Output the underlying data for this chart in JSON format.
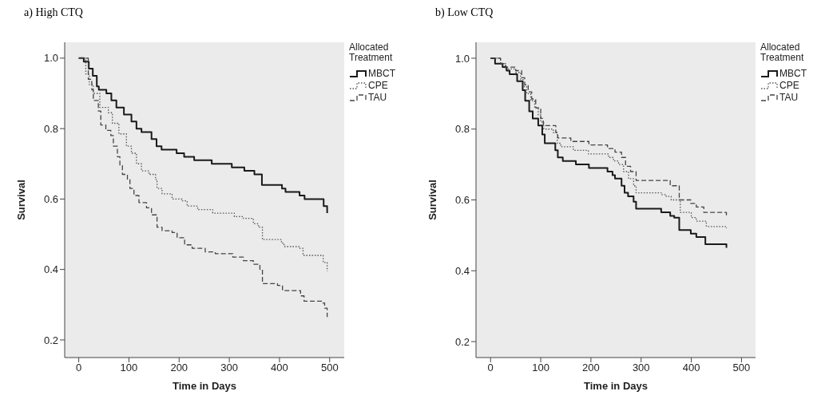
{
  "chart_data": [
    {
      "type": "step",
      "title": "a) High CTQ",
      "xlabel": "Time in Days",
      "ylabel": "Survival",
      "legend_title": "Allocated Treatment",
      "legend": "top right",
      "grid": false,
      "xlim": [
        -28,
        529
      ],
      "xticks": [
        0,
        100,
        200,
        300,
        400,
        500
      ],
      "ylim": [
        0.15,
        1.045
      ],
      "yticks": [
        0.2,
        0.4,
        0.6,
        0.8,
        {
          "value": 1,
          "label": "1.0"
        }
      ],
      "series": [
        {
          "name": "MBCT",
          "color": "#1a1a1a",
          "line_style": "solid",
          "x": [
            0,
            10,
            20,
            28,
            36,
            40,
            55,
            65,
            75,
            90,
            105,
            115,
            125,
            145,
            155,
            165,
            195,
            210,
            230,
            265,
            305,
            330,
            350,
            365,
            405,
            412,
            440,
            450,
            488,
            495
          ],
          "values": [
            1.0,
            0.99,
            0.97,
            0.95,
            0.92,
            0.91,
            0.9,
            0.88,
            0.86,
            0.84,
            0.82,
            0.8,
            0.79,
            0.77,
            0.75,
            0.74,
            0.73,
            0.72,
            0.71,
            0.7,
            0.69,
            0.68,
            0.67,
            0.64,
            0.63,
            0.62,
            0.61,
            0.6,
            0.58,
            0.56
          ]
        },
        {
          "name": "CPE",
          "color": "#555555",
          "line_style": "dotted",
          "x": [
            0,
            14,
            21,
            29,
            42,
            59,
            67,
            80,
            95,
            105,
            115,
            125,
            140,
            153,
            156,
            166,
            186,
            206,
            216,
            237,
            267,
            310,
            328,
            348,
            358,
            366,
            404,
            409,
            439,
            447,
            487,
            495
          ],
          "values": [
            1.0,
            0.955,
            0.925,
            0.9,
            0.86,
            0.845,
            0.815,
            0.785,
            0.75,
            0.73,
            0.7,
            0.68,
            0.67,
            0.655,
            0.63,
            0.615,
            0.6,
            0.595,
            0.58,
            0.57,
            0.56,
            0.55,
            0.545,
            0.53,
            0.52,
            0.485,
            0.475,
            0.465,
            0.46,
            0.44,
            0.42,
            0.395
          ]
        },
        {
          "name": "TAU",
          "color": "#444444",
          "line_style": "dashed",
          "x": [
            0,
            19,
            26,
            29,
            39,
            44,
            54,
            64,
            69,
            77,
            82,
            87,
            97,
            102,
            110,
            120,
            135,
            145,
            156,
            166,
            186,
            196,
            211,
            226,
            252,
            272,
            307,
            328,
            348,
            361,
            366,
            396,
            406,
            442,
            449,
            485,
            490,
            495
          ],
          "values": [
            1.0,
            0.94,
            0.91,
            0.88,
            0.85,
            0.81,
            0.795,
            0.78,
            0.75,
            0.72,
            0.695,
            0.67,
            0.655,
            0.63,
            0.61,
            0.59,
            0.575,
            0.555,
            0.52,
            0.51,
            0.505,
            0.49,
            0.47,
            0.46,
            0.45,
            0.445,
            0.435,
            0.425,
            0.415,
            0.4,
            0.36,
            0.355,
            0.34,
            0.325,
            0.31,
            0.305,
            0.29,
            0.265
          ]
        }
      ]
    },
    {
      "type": "step",
      "title": "b) Low CTQ",
      "xlabel": "Time in Days",
      "ylabel": "Survival",
      "legend_title": "Allocated Treatment",
      "legend": "top right",
      "grid": false,
      "xlim": [
        -29,
        528
      ],
      "xticks": [
        0,
        100,
        200,
        300,
        400,
        500
      ],
      "ylim": [
        0.155,
        1.045
      ],
      "yticks": [
        0.2,
        0.4,
        0.6,
        0.8,
        {
          "value": 1,
          "label": "1.0"
        }
      ],
      "series": [
        {
          "name": "MBCT",
          "color": "#1a1a1a",
          "line_style": "solid",
          "x": [
            0,
            9,
            24,
            32,
            38,
            53,
            64,
            69,
            77,
            84,
            95,
            103,
            108,
            129,
            134,
            144,
            170,
            196,
            233,
            243,
            248,
            261,
            267,
            274,
            285,
            290,
            340,
            358,
            366,
            376,
            399,
            410,
            428,
            470
          ],
          "values": [
            1.0,
            0.985,
            0.975,
            0.965,
            0.955,
            0.935,
            0.91,
            0.88,
            0.85,
            0.83,
            0.81,
            0.785,
            0.76,
            0.74,
            0.72,
            0.71,
            0.7,
            0.69,
            0.68,
            0.67,
            0.66,
            0.64,
            0.62,
            0.61,
            0.595,
            0.575,
            0.565,
            0.555,
            0.55,
            0.515,
            0.505,
            0.495,
            0.475,
            0.465
          ]
        },
        {
          "name": "CPE",
          "color": "#555555",
          "line_style": "dotted",
          "x": [
            0,
            20,
            30,
            50,
            60,
            65,
            72,
            80,
            88,
            95,
            100,
            106,
            125,
            133,
            140,
            165,
            195,
            235,
            245,
            255,
            265,
            275,
            285,
            290,
            340,
            350,
            360,
            378,
            400,
            410,
            430,
            470
          ],
          "values": [
            1.0,
            0.985,
            0.97,
            0.96,
            0.94,
            0.92,
            0.9,
            0.88,
            0.86,
            0.84,
            0.82,
            0.8,
            0.79,
            0.76,
            0.75,
            0.74,
            0.73,
            0.72,
            0.71,
            0.7,
            0.68,
            0.66,
            0.64,
            0.62,
            0.615,
            0.61,
            0.6,
            0.565,
            0.55,
            0.54,
            0.525,
            0.52
          ]
        },
        {
          "name": "TAU",
          "color": "#444444",
          "line_style": "dashed",
          "x": [
            0,
            20,
            30,
            50,
            62,
            68,
            75,
            82,
            90,
            100,
            105,
            130,
            134,
            160,
            196,
            233,
            248,
            261,
            269,
            279,
            290,
            358,
            376,
            399,
            410,
            425,
            470
          ],
          "values": [
            1.0,
            0.985,
            0.975,
            0.965,
            0.945,
            0.925,
            0.905,
            0.885,
            0.86,
            0.83,
            0.81,
            0.79,
            0.775,
            0.765,
            0.755,
            0.745,
            0.735,
            0.72,
            0.695,
            0.68,
            0.655,
            0.64,
            0.6,
            0.59,
            0.58,
            0.565,
            0.555
          ]
        }
      ]
    }
  ]
}
